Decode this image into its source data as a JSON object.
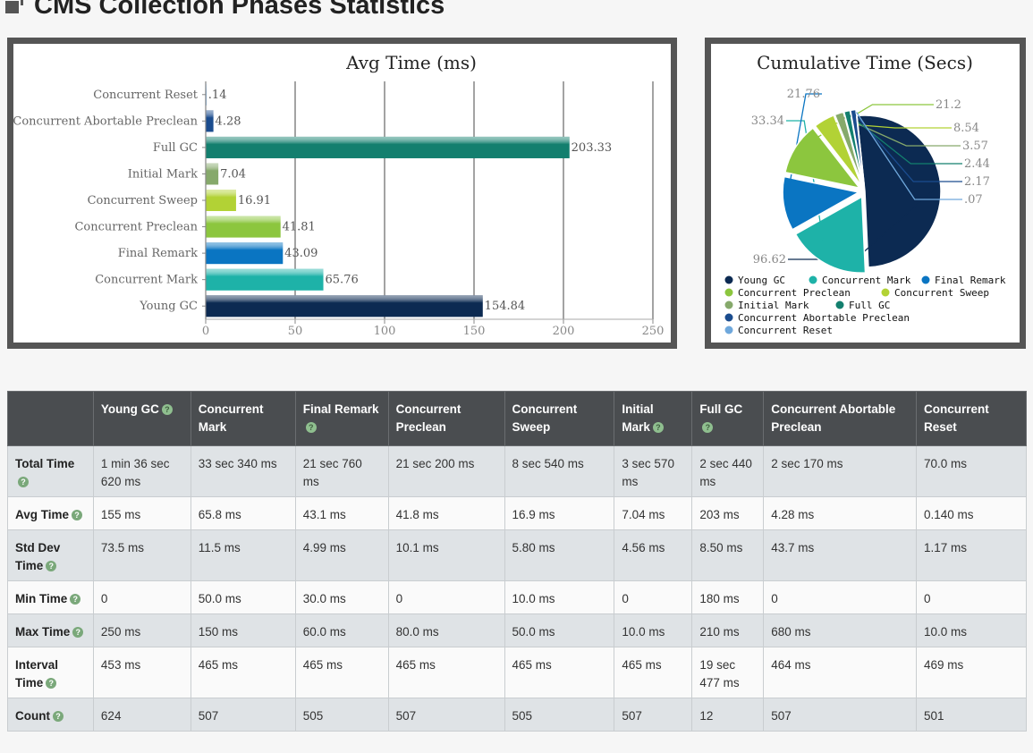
{
  "page": {
    "title": "CMS Collection Phases Statistics"
  },
  "chart_data": [
    {
      "type": "bar",
      "orientation": "horizontal",
      "title": "Avg Time (ms)",
      "categories": [
        "Young GC",
        "Concurrent Mark",
        "Final Remark",
        "Concurrent Preclean",
        "Concurrent Sweep",
        "Initial Mark",
        "Full GC",
        "Concurrent Abortable Preclean",
        "Concurrent Reset"
      ],
      "values": [
        154.84,
        65.76,
        43.09,
        41.81,
        16.91,
        7.04,
        203.33,
        4.28,
        0.14
      ],
      "value_labels": [
        "154.84",
        "65.76",
        "43.09",
        "41.81",
        "16.91",
        "7.04",
        "203.33",
        "4.28",
        ".14"
      ],
      "colors": [
        "#0c2a52",
        "#1eb2a8",
        "#0a75c2",
        "#8cc63e",
        "#b2d235",
        "#86a96b",
        "#137f6e",
        "#1b4c8e",
        "#6fa8dc"
      ],
      "xlim": [
        0,
        250
      ],
      "ticks": [
        "0",
        "50",
        "100",
        "150",
        "200",
        "250"
      ],
      "grid": true
    },
    {
      "type": "pie",
      "title": "Cumulative Time (Secs)",
      "labels": [
        "Young GC",
        "Concurrent Mark",
        "Final Remark",
        "Concurrent Preclean",
        "Concurrent Sweep",
        "Initial Mark",
        "Full GC",
        "Concurrent Abortable Preclean",
        "Concurrent Reset"
      ],
      "values": [
        96.62,
        33.34,
        21.76,
        21.2,
        8.54,
        3.57,
        2.44,
        2.17,
        0.07
      ],
      "value_labels": [
        "96.62",
        "33.34",
        "21.76",
        "21.2",
        "8.54",
        "3.57",
        "2.44",
        "2.17",
        ".07"
      ],
      "colors": [
        "#0c2a52",
        "#1eb2a8",
        "#0a75c2",
        "#8cc63e",
        "#b2d235",
        "#86a96b",
        "#137f6e",
        "#1b4c8e",
        "#6fa8dc"
      ],
      "legend_position": "bottom"
    }
  ],
  "table": {
    "headers": [
      {
        "label": "",
        "help": false
      },
      {
        "label": "Young GC",
        "help": true
      },
      {
        "label": "Concurrent Mark",
        "help": false
      },
      {
        "label": "Final Remark",
        "help": true
      },
      {
        "label": "Concurrent Preclean",
        "help": false
      },
      {
        "label": "Concurrent Sweep",
        "help": false
      },
      {
        "label": "Initial Mark",
        "help": true
      },
      {
        "label": "Full GC",
        "help": true
      },
      {
        "label": "Concurrent Abortable Preclean",
        "help": false
      },
      {
        "label": "Concurrent Reset",
        "help": false
      }
    ],
    "rows": [
      {
        "label": "Total Time",
        "cells": [
          "1 min 36 sec 620 ms",
          "33 sec 340 ms",
          "21 sec 760 ms",
          "21 sec 200 ms",
          "8 sec 540 ms",
          "3 sec 570 ms",
          "2 sec 440 ms",
          "2 sec 170 ms",
          "70.0 ms"
        ]
      },
      {
        "label": "Avg Time",
        "cells": [
          "155 ms",
          "65.8 ms",
          "43.1 ms",
          "41.8 ms",
          "16.9 ms",
          "7.04 ms",
          "203 ms",
          "4.28 ms",
          "0.140 ms"
        ]
      },
      {
        "label": "Std Dev Time",
        "cells": [
          "73.5 ms",
          "11.5 ms",
          "4.99 ms",
          "10.1 ms",
          "5.80 ms",
          "4.56 ms",
          "8.50 ms",
          "43.7 ms",
          "1.17 ms"
        ]
      },
      {
        "label": "Min Time",
        "cells": [
          "0",
          "50.0 ms",
          "30.0 ms",
          "0",
          "10.0 ms",
          "0",
          "180 ms",
          "0",
          "0"
        ]
      },
      {
        "label": "Max Time",
        "cells": [
          "250 ms",
          "150 ms",
          "60.0 ms",
          "80.0 ms",
          "50.0 ms",
          "10.0 ms",
          "210 ms",
          "680 ms",
          "10.0 ms"
        ]
      },
      {
        "label": "Interval Time",
        "cells": [
          "453 ms",
          "465 ms",
          "465 ms",
          "465 ms",
          "465 ms",
          "465 ms",
          "19 sec 477 ms",
          "464 ms",
          "469 ms"
        ]
      },
      {
        "label": "Count",
        "cells": [
          "624",
          "507",
          "505",
          "507",
          "505",
          "507",
          "12",
          "507",
          "501"
        ]
      }
    ]
  }
}
